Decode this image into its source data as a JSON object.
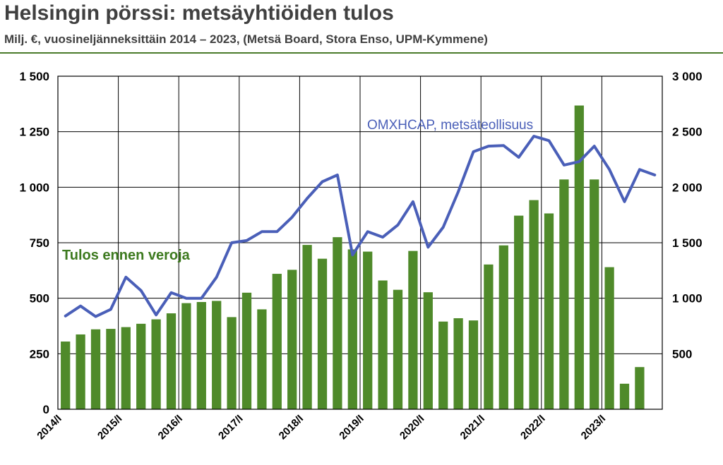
{
  "header": {
    "title": "Helsingin pörssi: metsäyhtiöiden tulos",
    "subtitle": "Milj. €, vuosineljänneksittäin 2014 – 2023, (Metsä Board, Stora Enso, UPM-Kymmene)"
  },
  "colors": {
    "bars": "#4f8a2a",
    "line": "#4a5fb8",
    "grid": "#000000",
    "rule": "#4a7a2a"
  },
  "chart_data": {
    "type": "bar",
    "title": "Helsingin pörssi: metsäyhtiöiden tulos",
    "subtitle": "Milj. €, vuosineljänneksittäin 2014 – 2023, (Metsä Board, Stora Enso, UPM-Kymmene)",
    "grid": true,
    "year_labels": [
      "2014/I",
      "2015/I",
      "2016/I",
      "2017/I",
      "2018/I",
      "2019/I",
      "2020/I",
      "2021/I",
      "2022/I",
      "2023/I"
    ],
    "left_axis": {
      "ylim": [
        0,
        1500
      ],
      "ticks": [
        0,
        250,
        500,
        750,
        1000,
        1250,
        1500
      ],
      "tick_labels": [
        "0",
        "250",
        "500",
        "750",
        "1 000",
        "1 250",
        "1 500"
      ]
    },
    "right_axis": {
      "ylim": [
        0,
        3000
      ],
      "ticks": [
        500,
        1000,
        1500,
        2000,
        2500,
        3000
      ],
      "tick_labels": [
        "500",
        "1 000",
        "1 500",
        "2 000",
        "2 500",
        "3 000"
      ]
    },
    "series": [
      {
        "name": "Tulos ennen veroja",
        "type": "bar",
        "axis": "left",
        "values": [
          305,
          337,
          360,
          362,
          370,
          385,
          405,
          432,
          478,
          483,
          488,
          415,
          525,
          450,
          610,
          628,
          740,
          678,
          775,
          720,
          710,
          580,
          538,
          713,
          527,
          395,
          410,
          400,
          652,
          738,
          872,
          942,
          882,
          1035,
          1368,
          1035,
          640,
          115,
          190
        ]
      },
      {
        "name": "OMXHCAP, metsäteollisuus",
        "type": "line",
        "axis": "right",
        "values": [
          840,
          930,
          835,
          900,
          1190,
          1070,
          850,
          1050,
          1000,
          1000,
          1190,
          1500,
          1520,
          1600,
          1600,
          1730,
          1900,
          2050,
          2110,
          1390,
          1600,
          1550,
          1660,
          1870,
          1460,
          1640,
          1960,
          2320,
          2370,
          2375,
          2270,
          2460,
          2420,
          2200,
          2230,
          2370,
          2160,
          1870,
          2160,
          2110
        ]
      }
    ],
    "annotations": [
      "Tulos ennen veroja",
      "OMXHCAP, metsäteollisuus"
    ]
  }
}
